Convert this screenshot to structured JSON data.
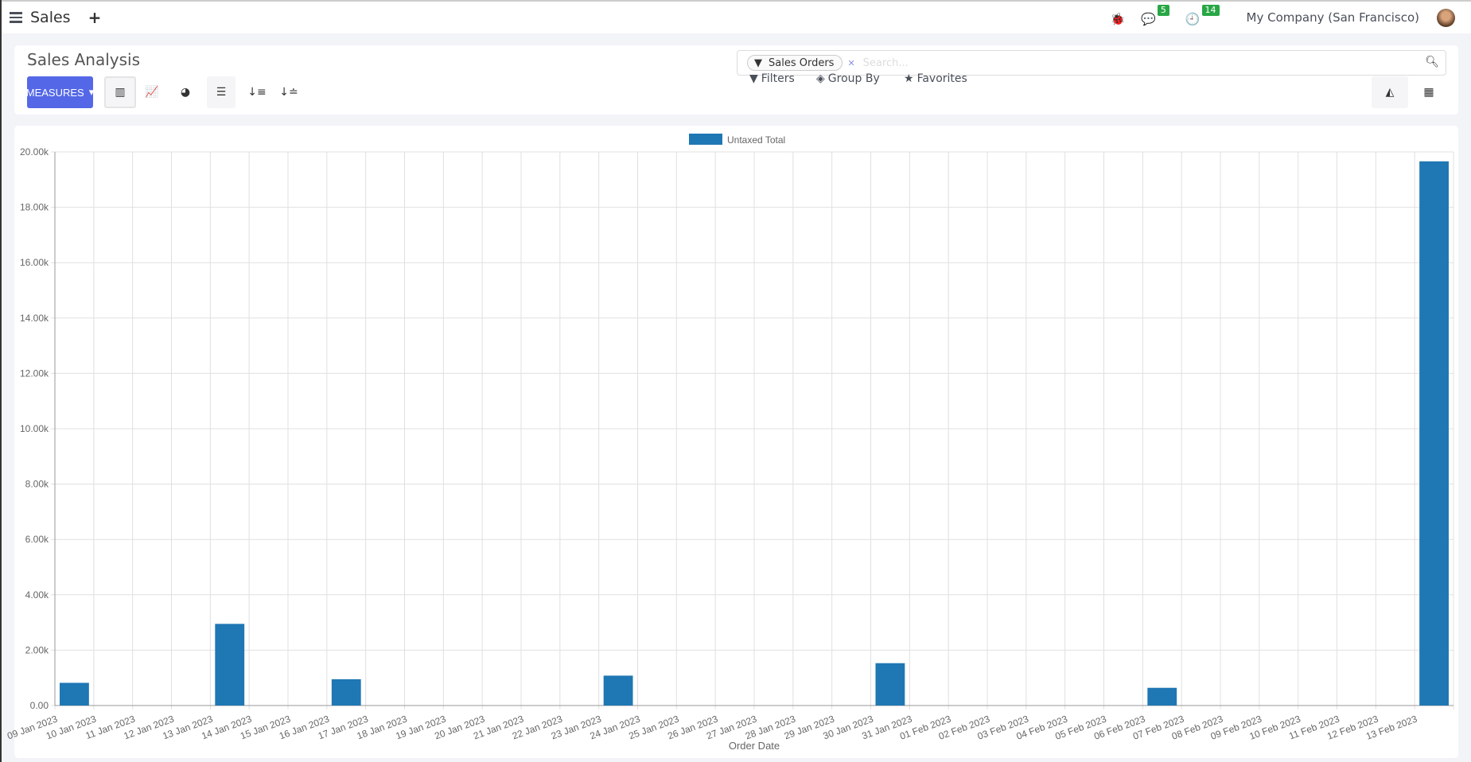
{
  "topbar": {
    "app_title": "Sales",
    "plus": "+",
    "messages_count": "5",
    "activities_count": "14",
    "company": "My Company (San Francisco)"
  },
  "control_panel": {
    "title": "Sales Analysis",
    "measures_label": "MEASURES",
    "search": {
      "facet": "Sales Orders",
      "placeholder": "Search..."
    },
    "filters_label": "Filters",
    "groupby_label": "Group By",
    "favorites_label": "Favorites"
  },
  "colors": {
    "bar": "#1f77b4",
    "accent": "#5468e7",
    "badge": "#28a745"
  },
  "chart_data": {
    "type": "bar",
    "title": "",
    "xlabel": "Order Date",
    "ylabel": "",
    "ylim": [
      0,
      20000
    ],
    "yticks": [
      "0.00",
      "2.00k",
      "4.00k",
      "6.00k",
      "8.00k",
      "10.00k",
      "12.00k",
      "14.00k",
      "16.00k",
      "18.00k",
      "20.00k"
    ],
    "grid": true,
    "legend_position": "top-center",
    "categories": [
      "09 Jan 2023",
      "10 Jan 2023",
      "11 Jan 2023",
      "12 Jan 2023",
      "13 Jan 2023",
      "14 Jan 2023",
      "15 Jan 2023",
      "16 Jan 2023",
      "17 Jan 2023",
      "18 Jan 2023",
      "19 Jan 2023",
      "20 Jan 2023",
      "21 Jan 2023",
      "22 Jan 2023",
      "23 Jan 2023",
      "24 Jan 2023",
      "25 Jan 2023",
      "26 Jan 2023",
      "27 Jan 2023",
      "28 Jan 2023",
      "29 Jan 2023",
      "30 Jan 2023",
      "31 Jan 2023",
      "01 Feb 2023",
      "02 Feb 2023",
      "03 Feb 2023",
      "04 Feb 2023",
      "05 Feb 2023",
      "06 Feb 2023",
      "07 Feb 2023",
      "08 Feb 2023",
      "09 Feb 2023",
      "10 Feb 2023",
      "11 Feb 2023",
      "12 Feb 2023",
      "13 Feb 2023"
    ],
    "series": [
      {
        "name": "Untaxed Total",
        "values": [
          820,
          0,
          0,
          0,
          2950,
          0,
          0,
          950,
          0,
          0,
          0,
          0,
          0,
          0,
          1080,
          0,
          0,
          0,
          0,
          0,
          0,
          1530,
          0,
          0,
          0,
          0,
          0,
          0,
          640,
          0,
          0,
          0,
          0,
          0,
          0,
          19660
        ]
      }
    ]
  }
}
